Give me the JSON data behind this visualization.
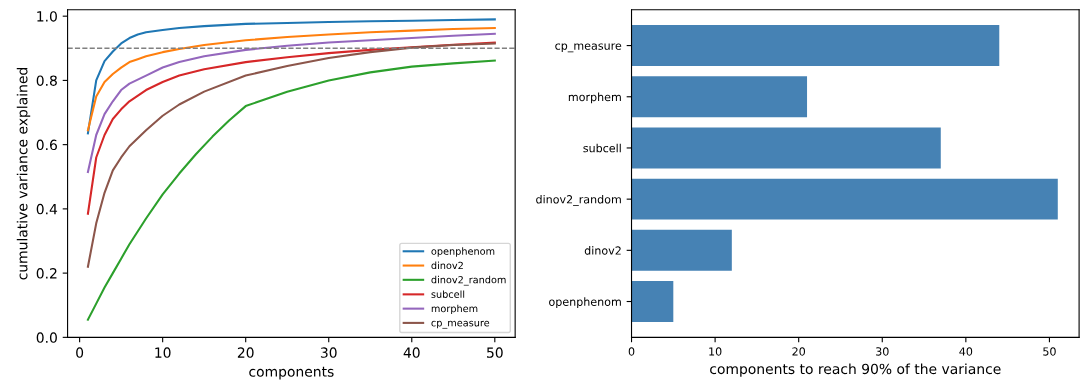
{
  "chart_data": [
    {
      "type": "line",
      "xlabel": "components",
      "ylabel": "cumulative variance explained",
      "xlim": [
        -1.45,
        52.45
      ],
      "xticks": [
        0,
        10,
        20,
        30,
        40,
        50
      ],
      "ylim": [
        0,
        1.02
      ],
      "yticks": [
        {
          "value": 0,
          "label": "0.0"
        },
        0.2,
        0.4,
        0.6,
        0.8,
        {
          "value": 1,
          "label": "1.0"
        }
      ],
      "legend": "bottom right",
      "grid": false,
      "ref_lines": [
        {
          "axis": "y",
          "value": 0.9,
          "label": null,
          "color": "#808080",
          "line_style": "dashed"
        }
      ],
      "series": [
        {
          "name": "openphenom",
          "color": "#1f77b4",
          "x": [
            1,
            2,
            3,
            4,
            5,
            6,
            7,
            8,
            10,
            12,
            15,
            20,
            25,
            30,
            35,
            40,
            45,
            50
          ],
          "values": [
            0.635,
            0.8,
            0.86,
            0.89,
            0.915,
            0.932,
            0.943,
            0.95,
            0.957,
            0.963,
            0.969,
            0.976,
            0.979,
            0.982,
            0.984,
            0.986,
            0.988,
            0.99
          ]
        },
        {
          "name": "dinov2",
          "color": "#ff7f0e",
          "x": [
            1,
            2,
            3,
            4,
            5,
            6,
            7,
            8,
            10,
            12,
            15,
            20,
            25,
            30,
            35,
            40,
            45,
            50
          ],
          "values": [
            0.645,
            0.75,
            0.795,
            0.82,
            0.84,
            0.857,
            0.866,
            0.875,
            0.888,
            0.898,
            0.91,
            0.925,
            0.935,
            0.943,
            0.95,
            0.955,
            0.96,
            0.963
          ]
        },
        {
          "name": "dinov2_random",
          "color": "#2ca02c",
          "x": [
            1,
            2,
            3,
            4,
            5,
            6,
            8,
            10,
            12,
            14,
            16,
            18,
            20,
            25,
            30,
            35,
            40,
            45,
            50
          ],
          "values": [
            0.055,
            0.105,
            0.155,
            0.2,
            0.245,
            0.29,
            0.37,
            0.445,
            0.51,
            0.57,
            0.625,
            0.675,
            0.72,
            0.765,
            0.8,
            0.825,
            0.843,
            0.853,
            0.862
          ]
        },
        {
          "name": "subcell",
          "color": "#d62728",
          "x": [
            1,
            2,
            3,
            4,
            5,
            6,
            8,
            10,
            12,
            15,
            20,
            25,
            30,
            35,
            40,
            45,
            50
          ],
          "values": [
            0.385,
            0.56,
            0.63,
            0.68,
            0.71,
            0.735,
            0.77,
            0.795,
            0.815,
            0.835,
            0.857,
            0.872,
            0.885,
            0.895,
            0.903,
            0.911,
            0.918
          ]
        },
        {
          "name": "morphem",
          "color": "#9467bd",
          "x": [
            1,
            2,
            3,
            4,
            5,
            6,
            8,
            10,
            12,
            15,
            20,
            25,
            30,
            35,
            40,
            45,
            50
          ],
          "values": [
            0.515,
            0.63,
            0.695,
            0.735,
            0.77,
            0.79,
            0.815,
            0.84,
            0.857,
            0.875,
            0.895,
            0.908,
            0.918,
            0.925,
            0.932,
            0.939,
            0.945
          ]
        },
        {
          "name": "cp_measure",
          "color": "#8c564b",
          "x": [
            1,
            2,
            3,
            4,
            5,
            6,
            8,
            10,
            12,
            15,
            20,
            25,
            30,
            35,
            40,
            45,
            50
          ],
          "values": [
            0.22,
            0.355,
            0.45,
            0.52,
            0.56,
            0.595,
            0.645,
            0.69,
            0.725,
            0.765,
            0.815,
            0.845,
            0.87,
            0.888,
            0.902,
            0.91,
            0.915
          ]
        }
      ]
    },
    {
      "type": "bar",
      "orientation": "horizontal",
      "xlabel": "components to reach 90% of the variance",
      "categories": [
        "cp_measure",
        "morphem",
        "subcell",
        "dinov2_random",
        "dinov2",
        "openphenom"
      ],
      "values": [
        44,
        21,
        37,
        51,
        12,
        5
      ],
      "color": "#4682b4",
      "xlim": [
        0,
        53.55
      ],
      "xticks": [
        0,
        10,
        20,
        30,
        40,
        50
      ],
      "grid": false,
      "legend": false
    }
  ]
}
